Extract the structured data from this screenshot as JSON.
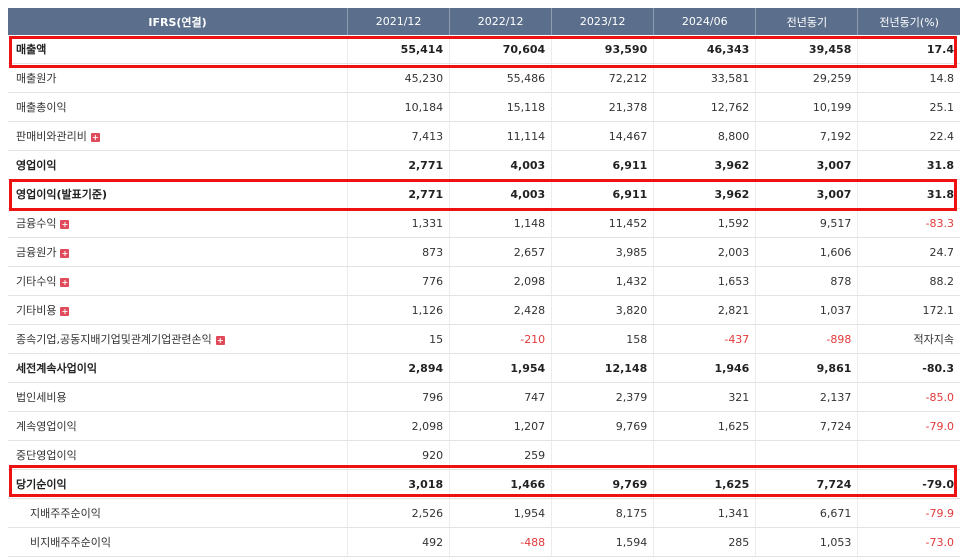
{
  "header": [
    "IFRS(연결)",
    "2021/12",
    "2022/12",
    "2023/12",
    "2024/06",
    "전년동기",
    "전년동기(%)"
  ],
  "rows": [
    {
      "label": "매출액",
      "values": [
        "55,414",
        "70,604",
        "93,590",
        "46,343",
        "39,458",
        "17.4"
      ],
      "neg": [
        false,
        false,
        false,
        false,
        false,
        false
      ]
    },
    {
      "label": "매출원가",
      "values": [
        "45,230",
        "55,486",
        "72,212",
        "33,581",
        "29,259",
        "14.8"
      ],
      "neg": [
        false,
        false,
        false,
        false,
        false,
        false
      ]
    },
    {
      "label": "매출총이익",
      "values": [
        "10,184",
        "15,118",
        "21,378",
        "12,762",
        "10,199",
        "25.1"
      ],
      "neg": [
        false,
        false,
        false,
        false,
        false,
        false
      ]
    },
    {
      "label": "판매비와관리비",
      "values": [
        "7,413",
        "11,114",
        "14,467",
        "8,800",
        "7,192",
        "22.4"
      ],
      "neg": [
        false,
        false,
        false,
        false,
        false,
        false
      ]
    },
    {
      "label": "영업이익",
      "values": [
        "2,771",
        "4,003",
        "6,911",
        "3,962",
        "3,007",
        "31.8"
      ],
      "neg": [
        false,
        false,
        false,
        false,
        false,
        false
      ]
    },
    {
      "label": "영업이익(발표기준)",
      "values": [
        "2,771",
        "4,003",
        "6,911",
        "3,962",
        "3,007",
        "31.8"
      ],
      "neg": [
        false,
        false,
        false,
        false,
        false,
        false
      ]
    },
    {
      "label": "금융수익",
      "values": [
        "1,331",
        "1,148",
        "11,452",
        "1,592",
        "9,517",
        "-83.3"
      ],
      "neg": [
        false,
        false,
        false,
        false,
        false,
        true
      ]
    },
    {
      "label": "금융원가",
      "values": [
        "873",
        "2,657",
        "3,985",
        "2,003",
        "1,606",
        "24.7"
      ],
      "neg": [
        false,
        false,
        false,
        false,
        false,
        false
      ]
    },
    {
      "label": "기타수익",
      "values": [
        "776",
        "2,098",
        "1,432",
        "1,653",
        "878",
        "88.2"
      ],
      "neg": [
        false,
        false,
        false,
        false,
        false,
        false
      ]
    },
    {
      "label": "기타비용",
      "values": [
        "1,126",
        "2,428",
        "3,820",
        "2,821",
        "1,037",
        "172.1"
      ],
      "neg": [
        false,
        false,
        false,
        false,
        false,
        false
      ]
    },
    {
      "label": "종속기업,공동지배기업및관계기업관련손익",
      "values": [
        "15",
        "-210",
        "158",
        "-437",
        "-898",
        "적자지속"
      ],
      "neg": [
        false,
        true,
        false,
        true,
        true,
        false
      ]
    },
    {
      "label": "세전계속사업이익",
      "values": [
        "2,894",
        "1,954",
        "12,148",
        "1,946",
        "9,861",
        "-80.3"
      ],
      "neg": [
        false,
        false,
        false,
        false,
        false,
        true
      ]
    },
    {
      "label": "법인세비용",
      "values": [
        "796",
        "747",
        "2,379",
        "321",
        "2,137",
        "-85.0"
      ],
      "neg": [
        false,
        false,
        false,
        false,
        false,
        true
      ]
    },
    {
      "label": "계속영업이익",
      "values": [
        "2,098",
        "1,207",
        "9,769",
        "1,625",
        "7,724",
        "-79.0"
      ],
      "neg": [
        false,
        false,
        false,
        false,
        false,
        true
      ]
    },
    {
      "label": "중단영업이익",
      "values": [
        "920",
        "259",
        "",
        "",
        "",
        ""
      ],
      "neg": [
        false,
        false,
        false,
        false,
        false,
        false
      ]
    },
    {
      "label": "당기순이익",
      "values": [
        "3,018",
        "1,466",
        "9,769",
        "1,625",
        "7,724",
        "-79.0"
      ],
      "neg": [
        false,
        false,
        false,
        false,
        false,
        true
      ]
    },
    {
      "label": "지배주주순이익",
      "values": [
        "2,526",
        "1,954",
        "8,175",
        "1,341",
        "6,671",
        "-79.9"
      ],
      "neg": [
        false,
        false,
        false,
        false,
        false,
        true
      ]
    },
    {
      "label": "비지배주주순이익",
      "values": [
        "492",
        "-488",
        "1,594",
        "285",
        "1,053",
        "-73.0"
      ],
      "neg": [
        false,
        true,
        false,
        false,
        false,
        true
      ]
    }
  ],
  "accent": "#5b6f8c",
  "highlight_color": "#ee1111",
  "negative_color": "#e23a3a"
}
